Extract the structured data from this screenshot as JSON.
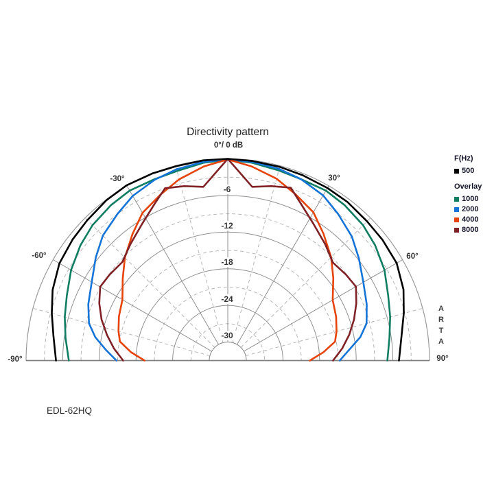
{
  "title": "Directivity pattern",
  "labels": {
    "apex": "0°/ 0 dB",
    "angles": [
      "-30°",
      "30°",
      "-60°",
      "60°",
      "-90°",
      "90°"
    ],
    "db_ticks": [
      "-6",
      "-12",
      "-18",
      "-24",
      "-30"
    ],
    "watermark": [
      "A",
      "R",
      "T",
      "A"
    ],
    "footer": "EDL-62HQ"
  },
  "legend": {
    "primary_header": "F(Hz)",
    "overlay_header": "Overlay",
    "primary": {
      "label": "500",
      "color": "#000000"
    },
    "overlay": [
      {
        "label": "1000",
        "color": "#0e7d62"
      },
      {
        "label": "2000",
        "color": "#1474d8"
      },
      {
        "label": "4000",
        "color": "#e64309"
      },
      {
        "label": "8000",
        "color": "#7f2125"
      }
    ]
  },
  "chart_data": {
    "type": "line",
    "subtype": "polar-semicircle-directivity",
    "title": "Directivity pattern",
    "device": "EDL-62HQ",
    "software": "ARTA",
    "angle_axis": {
      "unit": "deg",
      "range": [
        -90,
        90
      ],
      "major_ticks": [
        -90,
        -60,
        -30,
        0,
        30,
        60,
        90
      ],
      "minor_step": 15
    },
    "radial_axis": {
      "unit": "dB",
      "range": [
        0,
        -33
      ],
      "major_ticks": [
        0,
        -6,
        -12,
        -18,
        -24,
        -30
      ],
      "minor_step": 3
    },
    "grid": {
      "major_radial_step_deg": 30,
      "minor_radial_step_deg": 15,
      "major_circle_step_db": 6,
      "minor_circle_step_db": 3
    },
    "legend_position": "right",
    "series": [
      {
        "name": "500",
        "color": "#000000",
        "role": "primary",
        "points": [
          [
            -90,
            -4.9
          ],
          [
            -82,
            -4.2
          ],
          [
            -75,
            -3.2
          ],
          [
            -68,
            -2.1
          ],
          [
            -60,
            -1.2
          ],
          [
            -52,
            -0.8
          ],
          [
            -45,
            -0.5
          ],
          [
            -37,
            -0.1
          ],
          [
            -30,
            0.1
          ],
          [
            -22,
            0
          ],
          [
            -15,
            -0.1
          ],
          [
            -7,
            0
          ],
          [
            0,
            0
          ],
          [
            7,
            -0.1
          ],
          [
            15,
            -0.2
          ],
          [
            22,
            -0.3
          ],
          [
            30,
            -0.4
          ],
          [
            37,
            -0.5
          ],
          [
            45,
            -0.8
          ],
          [
            52,
            -0.9
          ],
          [
            60,
            -1.1
          ],
          [
            68,
            -2.0
          ],
          [
            75,
            -3.2
          ],
          [
            82,
            -4.3
          ],
          [
            90,
            -5.0
          ]
        ]
      },
      {
        "name": "1000",
        "color": "#0e7d62",
        "role": "overlay",
        "points": [
          [
            -90,
            -7.0
          ],
          [
            -82,
            -6.2
          ],
          [
            -75,
            -5.4
          ],
          [
            -68,
            -4.6
          ],
          [
            -60,
            -3.4
          ],
          [
            -52,
            -2.4
          ],
          [
            -45,
            -1.7
          ],
          [
            -37,
            -1.2
          ],
          [
            -30,
            -0.9
          ],
          [
            -22,
            -1.0
          ],
          [
            -15,
            -0.9
          ],
          [
            -7,
            -0.4
          ],
          [
            0,
            -0.15
          ],
          [
            7,
            -0.4
          ],
          [
            15,
            -0.8
          ],
          [
            22,
            -1.0
          ],
          [
            30,
            -0.9
          ],
          [
            37,
            -1.2
          ],
          [
            45,
            -1.7
          ],
          [
            52,
            -2.4
          ],
          [
            60,
            -3.4
          ],
          [
            68,
            -4.7
          ],
          [
            75,
            -5.5
          ],
          [
            82,
            -6.3
          ],
          [
            90,
            -6.9
          ]
        ]
      },
      {
        "name": "2000",
        "color": "#1474d8",
        "role": "overlay",
        "points": [
          [
            -90,
            -14.8
          ],
          [
            -85,
            -13.0
          ],
          [
            -80,
            -11.0
          ],
          [
            -75,
            -9.5
          ],
          [
            -68,
            -8.4
          ],
          [
            -60,
            -7.3
          ],
          [
            -52,
            -5.6
          ],
          [
            -45,
            -4.1
          ],
          [
            -37,
            -3.0
          ],
          [
            -30,
            -1.9
          ],
          [
            -22,
            -1.1
          ],
          [
            -15,
            -0.6
          ],
          [
            -7,
            -0.25
          ],
          [
            0,
            -0.1
          ],
          [
            7,
            -0.25
          ],
          [
            15,
            -0.55
          ],
          [
            22,
            -1.0
          ],
          [
            30,
            -1.8
          ],
          [
            37,
            -3.0
          ],
          [
            45,
            -4.3
          ],
          [
            52,
            -5.8
          ],
          [
            60,
            -7.4
          ],
          [
            68,
            -8.5
          ],
          [
            75,
            -9.5
          ],
          [
            80,
            -11.0
          ],
          [
            85,
            -13.1
          ],
          [
            90,
            -14.7
          ]
        ]
      },
      {
        "name": "4000",
        "color": "#e64309",
        "role": "overlay",
        "points": [
          [
            -90,
            -19.4
          ],
          [
            -85,
            -17.1
          ],
          [
            -80,
            -15.1
          ],
          [
            -75,
            -14.5
          ],
          [
            -68,
            -13.8
          ],
          [
            -60,
            -13.1
          ],
          [
            -52,
            -11.2
          ],
          [
            -45,
            -9.2
          ],
          [
            -37,
            -7.1
          ],
          [
            -30,
            -5.1
          ],
          [
            -22,
            -3.7
          ],
          [
            -15,
            -2.3
          ],
          [
            -7,
            -1.0
          ],
          [
            0,
            -0.1
          ],
          [
            7,
            -1.0
          ],
          [
            15,
            -2.2
          ],
          [
            22,
            -3.6
          ],
          [
            30,
            -5.0
          ],
          [
            37,
            -7.0
          ],
          [
            45,
            -9.1
          ],
          [
            52,
            -11.1
          ],
          [
            60,
            -13.2
          ],
          [
            68,
            -13.9
          ],
          [
            75,
            -14.6
          ],
          [
            80,
            -15.2
          ],
          [
            85,
            -17.3
          ],
          [
            90,
            -19.6
          ]
        ]
      },
      {
        "name": "8000",
        "color": "#7f2125",
        "role": "overlay",
        "points": [
          [
            -90,
            -15.9
          ],
          [
            -84,
            -14.3
          ],
          [
            -78,
            -12.8
          ],
          [
            -72,
            -11.3
          ],
          [
            -66,
            -10.0
          ],
          [
            -60,
            -8.9
          ],
          [
            -54,
            -9.1
          ],
          [
            -47,
            -9.4
          ],
          [
            -40,
            -8.2
          ],
          [
            -32,
            -6.6
          ],
          [
            -25,
            -4.7
          ],
          [
            -20,
            -3.0
          ],
          [
            -14,
            -3.6
          ],
          [
            -8,
            -4.3
          ],
          [
            0,
            0
          ],
          [
            8,
            -4.3
          ],
          [
            14,
            -3.6
          ],
          [
            20,
            -2.9
          ],
          [
            25,
            -4.7
          ],
          [
            32,
            -6.6
          ],
          [
            40,
            -8.2
          ],
          [
            47,
            -9.5
          ],
          [
            54,
            -9.1
          ],
          [
            60,
            -8.8
          ],
          [
            66,
            -10.0
          ],
          [
            72,
            -11.3
          ],
          [
            78,
            -12.7
          ],
          [
            84,
            -14.2
          ],
          [
            90,
            -15.8
          ]
        ]
      }
    ]
  }
}
